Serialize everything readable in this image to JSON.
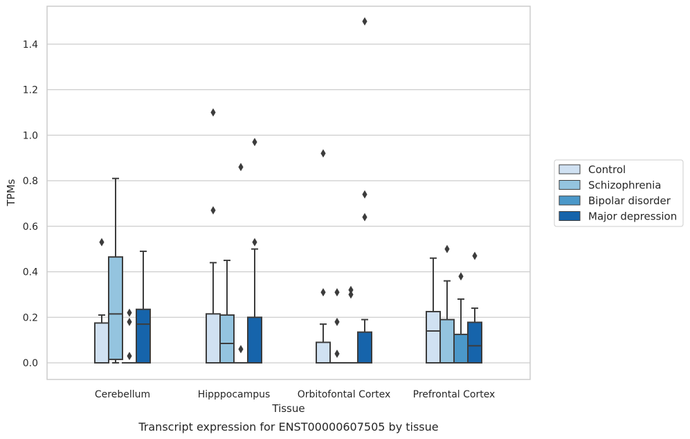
{
  "chart_data": {
    "type": "box",
    "caption": "Transcript expression for ENST00000607505 by tissue",
    "xlabel": "Tissue",
    "ylabel": "TPMs",
    "ylim": [
      -0.07,
      1.58
    ],
    "yticks": [
      0.0,
      0.2,
      0.4,
      0.6,
      0.8,
      1.0,
      1.2,
      1.4
    ],
    "ytick_labels": [
      "0.0",
      "0.2",
      "0.4",
      "0.6",
      "0.8",
      "1.0",
      "1.2",
      "1.4"
    ],
    "grid": true,
    "legend_position": "right",
    "categories": [
      "Cerebellum",
      "Hipppocampus",
      "Orbitofontal Cortex",
      "Prefrontal Cortex"
    ],
    "series": [
      {
        "name": "Control",
        "color": "#d0e1f2",
        "boxes": [
          {
            "whisker_low": 0.0,
            "q1": 0.0,
            "median": 0.0,
            "q3": 0.175,
            "whisker_high": 0.21,
            "outliers": [
              0.53
            ]
          },
          {
            "whisker_low": 0.0,
            "q1": 0.0,
            "median": 0.0,
            "q3": 0.215,
            "whisker_high": 0.44,
            "outliers": [
              0.67,
              1.1
            ]
          },
          {
            "whisker_low": 0.0,
            "q1": 0.0,
            "median": 0.0,
            "q3": 0.09,
            "whisker_high": 0.17,
            "outliers": [
              0.31,
              0.92
            ]
          },
          {
            "whisker_low": 0.0,
            "q1": 0.0,
            "median": 0.14,
            "q3": 0.225,
            "whisker_high": 0.46,
            "outliers": []
          }
        ]
      },
      {
        "name": "Schizophrenia",
        "color": "#94c4df",
        "boxes": [
          {
            "whisker_low": 0.0,
            "q1": 0.015,
            "median": 0.215,
            "q3": 0.465,
            "whisker_high": 0.81,
            "outliers": []
          },
          {
            "whisker_low": 0.0,
            "q1": 0.0,
            "median": 0.085,
            "q3": 0.21,
            "whisker_high": 0.45,
            "outliers": []
          },
          {
            "whisker_low": 0.0,
            "q1": 0.0,
            "median": 0.0,
            "q3": 0.0,
            "whisker_high": 0.0,
            "outliers": [
              0.04,
              0.18,
              0.31
            ]
          },
          {
            "whisker_low": 0.0,
            "q1": 0.0,
            "median": 0.0,
            "q3": 0.19,
            "whisker_high": 0.36,
            "outliers": [
              0.5
            ]
          }
        ]
      },
      {
        "name": "Bipolar disorder",
        "color": "#4b98c9",
        "boxes": [
          {
            "whisker_low": 0.0,
            "q1": 0.0,
            "median": 0.0,
            "q3": 0.0,
            "whisker_high": 0.0,
            "outliers": [
              0.03,
              0.18,
              0.22
            ]
          },
          {
            "whisker_low": 0.0,
            "q1": 0.0,
            "median": 0.0,
            "q3": 0.0,
            "whisker_high": 0.0,
            "outliers": [
              0.06,
              0.86
            ]
          },
          {
            "whisker_low": 0.0,
            "q1": 0.0,
            "median": 0.0,
            "q3": 0.0,
            "whisker_high": 0.0,
            "outliers": [
              0.3,
              0.32
            ]
          },
          {
            "whisker_low": 0.0,
            "q1": 0.0,
            "median": 0.0,
            "q3": 0.125,
            "whisker_high": 0.28,
            "outliers": [
              0.38
            ]
          }
        ]
      },
      {
        "name": "Major depression",
        "color": "#1664ab",
        "boxes": [
          {
            "whisker_low": 0.0,
            "q1": 0.0,
            "median": 0.17,
            "q3": 0.235,
            "whisker_high": 0.49,
            "outliers": []
          },
          {
            "whisker_low": 0.0,
            "q1": 0.0,
            "median": 0.0,
            "q3": 0.2,
            "whisker_high": 0.5,
            "outliers": [
              0.53,
              0.97
            ]
          },
          {
            "whisker_low": 0.0,
            "q1": 0.0,
            "median": 0.0,
            "q3": 0.135,
            "whisker_high": 0.19,
            "outliers": [
              0.64,
              0.74,
              1.5
            ]
          },
          {
            "whisker_low": 0.0,
            "q1": 0.0,
            "median": 0.075,
            "q3": 0.178,
            "whisker_high": 0.24,
            "outliers": [
              0.47
            ]
          }
        ]
      }
    ]
  }
}
